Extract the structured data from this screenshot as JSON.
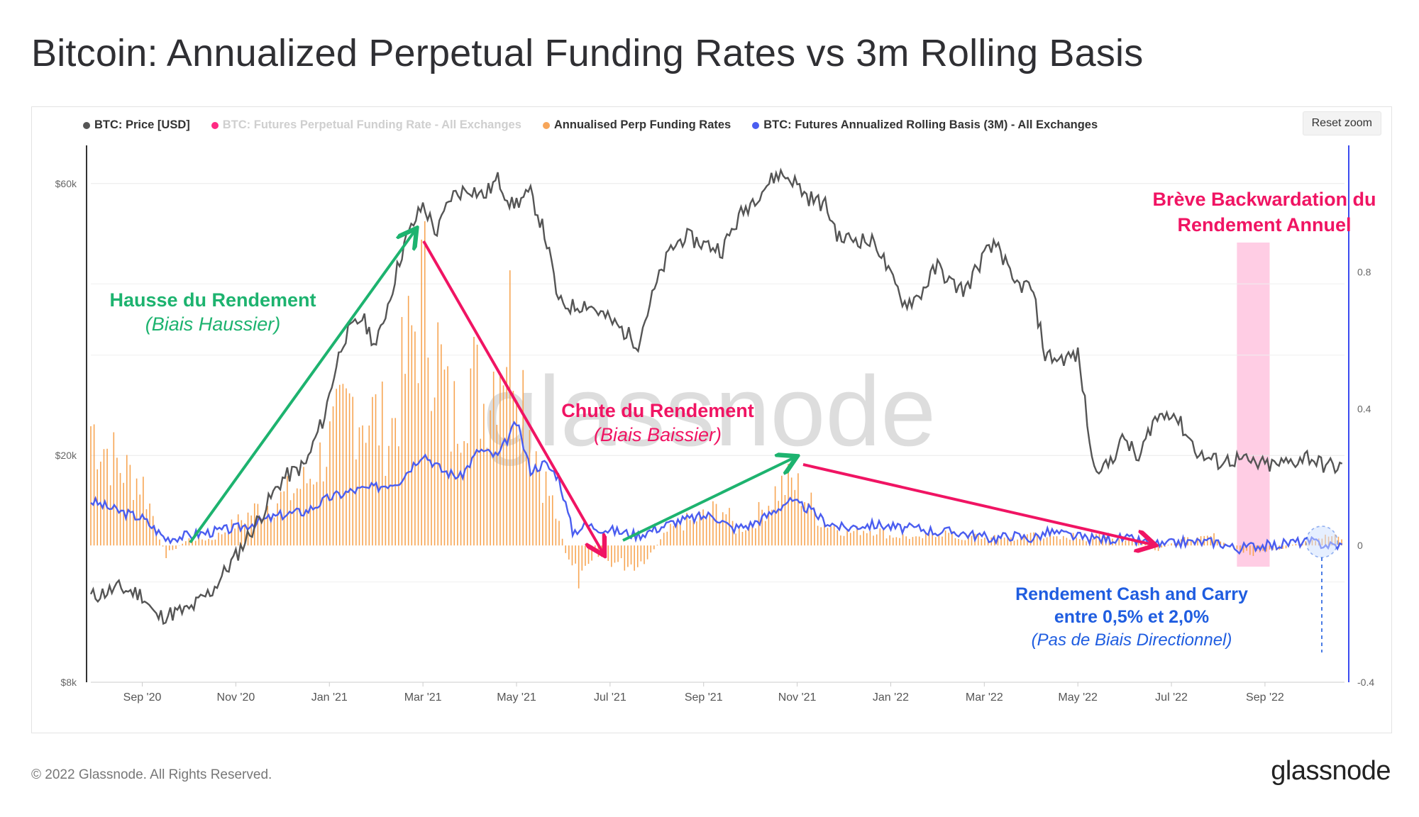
{
  "title": "Bitcoin: Annualized Perpetual Funding Rates vs 3m Rolling Basis",
  "reset_zoom_label": "Reset zoom",
  "footer": {
    "copyright": "© 2022 Glassnode. All Rights Reserved.",
    "logo": "glassnode"
  },
  "watermark": "glassnode",
  "colors": {
    "price": "#555555",
    "funding": "#f7931a",
    "basis": "#4a5df0",
    "muted_pink": "#ff2a83",
    "green": "#1db36f",
    "red": "#f01463",
    "blue": "#1f5de0",
    "band": "#ffc1dd"
  },
  "legend": [
    {
      "label": "BTC: Price [USD]",
      "color": "#555555",
      "muted": false
    },
    {
      "label": "BTC: Futures Perpetual Funding Rate - All Exchanges",
      "color": "#ff2a83",
      "muted": true
    },
    {
      "label": "Annualised Perp Funding Rates",
      "color": "#f7a65a",
      "muted": false
    },
    {
      "label": "BTC: Futures Annualized Rolling Basis (3M) - All Exchanges",
      "color": "#4a5df0",
      "muted": false
    }
  ],
  "annotations": {
    "hausse_title": "Hausse du Rendement",
    "hausse_sub": "(Biais Haussier)",
    "chute_title": "Chute du Rendement",
    "chute_sub": "(Biais Baissier)",
    "backwardation_line1": "Brève Backwardation du",
    "backwardation_line2": "Rendement Annuel",
    "cash_line1": "Rendement Cash and Carry",
    "cash_line2": "entre 0,5% et 2,0%",
    "cash_sub": "(Pas de Biais Directionnel)"
  },
  "chart_data": {
    "type": "line",
    "title": "Bitcoin: Annualized Perpetual Funding Rates vs 3m Rolling Basis",
    "x_ticks": [
      "Sep '20",
      "Nov '20",
      "Jan '21",
      "Mar '21",
      "May '21",
      "Jul '21",
      "Sep '21",
      "Nov '21",
      "Jan '22",
      "Mar '22",
      "May '22",
      "Jul '22",
      "Sep '22"
    ],
    "x_tick_months": [
      2,
      4,
      6,
      8,
      10,
      12,
      14,
      16,
      18,
      20,
      22,
      24,
      26
    ],
    "x_range_months": [
      0.9,
      27.7
    ],
    "y_left": {
      "scale": "log",
      "ticks": [
        8000,
        20000,
        60000
      ],
      "tick_labels": [
        "$8k",
        "$20k",
        "$60k"
      ],
      "range": [
        8000,
        70000
      ]
    },
    "y_right": {
      "ticks": [
        -0.4,
        0,
        0.4,
        0.8
      ],
      "tick_labels": [
        "-0.4",
        "0",
        "0.4",
        "0.8"
      ],
      "range": [
        -0.4,
        1.17
      ]
    },
    "series": [
      {
        "name": "BTC: Price [USD]",
        "axis": "left",
        "points": [
          [
            0.9,
            11300
          ],
          [
            1.5,
            11700
          ],
          [
            2.0,
            11400
          ],
          [
            2.3,
            10400
          ],
          [
            2.7,
            10600
          ],
          [
            3.0,
            10700
          ],
          [
            3.5,
            11600
          ],
          [
            4.0,
            13300
          ],
          [
            4.5,
            15500
          ],
          [
            5.0,
            18200
          ],
          [
            5.5,
            19300
          ],
          [
            5.9,
            23500
          ],
          [
            6.3,
            32000
          ],
          [
            6.7,
            35000
          ],
          [
            7.0,
            31000
          ],
          [
            7.3,
            38000
          ],
          [
            7.6,
            47000
          ],
          [
            8.0,
            55000
          ],
          [
            8.3,
            49000
          ],
          [
            8.6,
            57000
          ],
          [
            9.0,
            59000
          ],
          [
            9.3,
            57000
          ],
          [
            9.6,
            61000
          ],
          [
            9.9,
            55000
          ],
          [
            10.3,
            57500
          ],
          [
            10.6,
            49000
          ],
          [
            10.9,
            37000
          ],
          [
            11.2,
            36500
          ],
          [
            11.5,
            37000
          ],
          [
            11.8,
            35500
          ],
          [
            12.2,
            33500
          ],
          [
            12.6,
            31500
          ],
          [
            13.0,
            40000
          ],
          [
            13.3,
            46000
          ],
          [
            13.6,
            48500
          ],
          [
            14.0,
            47000
          ],
          [
            14.4,
            46000
          ],
          [
            14.8,
            53000
          ],
          [
            15.2,
            58000
          ],
          [
            15.6,
            62500
          ],
          [
            15.9,
            61000
          ],
          [
            16.2,
            57000
          ],
          [
            16.6,
            55000
          ],
          [
            16.9,
            48000
          ],
          [
            17.3,
            48000
          ],
          [
            17.7,
            47000
          ],
          [
            18.0,
            41000
          ],
          [
            18.3,
            37000
          ],
          [
            18.6,
            38000
          ],
          [
            19.0,
            43000
          ],
          [
            19.3,
            40000
          ],
          [
            19.6,
            39000
          ],
          [
            20.0,
            45000
          ],
          [
            20.3,
            47000
          ],
          [
            20.6,
            40000
          ],
          [
            21.0,
            39500
          ],
          [
            21.3,
            30000
          ],
          [
            21.6,
            29500
          ],
          [
            22.0,
            30000
          ],
          [
            22.3,
            19500
          ],
          [
            22.6,
            19000
          ],
          [
            23.0,
            21500
          ],
          [
            23.3,
            19500
          ],
          [
            23.6,
            23000
          ],
          [
            24.0,
            24000
          ],
          [
            24.3,
            22000
          ],
          [
            24.6,
            20000
          ],
          [
            25.0,
            19500
          ],
          [
            25.4,
            19700
          ],
          [
            25.8,
            19300
          ],
          [
            26.2,
            19200
          ],
          [
            26.6,
            19500
          ],
          [
            26.9,
            20000
          ],
          [
            27.2,
            19300
          ],
          [
            27.7,
            19000
          ]
        ]
      },
      {
        "name": "BTC: Futures Annualized Rolling Basis (3M) - All Exchanges",
        "axis": "right",
        "points": [
          [
            0.9,
            0.13
          ],
          [
            1.5,
            0.1
          ],
          [
            2.0,
            0.08
          ],
          [
            2.5,
            0.02
          ],
          [
            3.0,
            0.03
          ],
          [
            3.5,
            0.04
          ],
          [
            4.0,
            0.05
          ],
          [
            4.5,
            0.07
          ],
          [
            5.0,
            0.09
          ],
          [
            5.5,
            0.1
          ],
          [
            6.0,
            0.14
          ],
          [
            6.5,
            0.16
          ],
          [
            7.0,
            0.17
          ],
          [
            7.5,
            0.19
          ],
          [
            8.0,
            0.27
          ],
          [
            8.4,
            0.22
          ],
          [
            8.8,
            0.2
          ],
          [
            9.2,
            0.28
          ],
          [
            9.6,
            0.26
          ],
          [
            10.0,
            0.36
          ],
          [
            10.3,
            0.22
          ],
          [
            10.6,
            0.24
          ],
          [
            10.9,
            0.2
          ],
          [
            11.2,
            0.04
          ],
          [
            11.5,
            0.06
          ],
          [
            11.8,
            0.05
          ],
          [
            12.2,
            0.04
          ],
          [
            12.6,
            0.03
          ],
          [
            13.0,
            0.05
          ],
          [
            13.4,
            0.07
          ],
          [
            13.8,
            0.08
          ],
          [
            14.2,
            0.09
          ],
          [
            14.6,
            0.05
          ],
          [
            15.0,
            0.06
          ],
          [
            15.4,
            0.09
          ],
          [
            15.8,
            0.13
          ],
          [
            16.2,
            0.11
          ],
          [
            16.6,
            0.07
          ],
          [
            17.0,
            0.05
          ],
          [
            17.4,
            0.06
          ],
          [
            17.8,
            0.06
          ],
          [
            18.2,
            0.05
          ],
          [
            18.6,
            0.05
          ],
          [
            19.0,
            0.04
          ],
          [
            19.4,
            0.04
          ],
          [
            19.8,
            0.03
          ],
          [
            20.2,
            0.02
          ],
          [
            20.6,
            0.03
          ],
          [
            21.0,
            0.02
          ],
          [
            21.4,
            0.04
          ],
          [
            21.8,
            0.03
          ],
          [
            22.2,
            0.02
          ],
          [
            22.6,
            0.02
          ],
          [
            23.0,
            0.02
          ],
          [
            23.4,
            0.01
          ],
          [
            23.8,
            0.0
          ],
          [
            24.2,
            0.01
          ],
          [
            24.6,
            0.01
          ],
          [
            25.0,
            0.01
          ],
          [
            25.4,
            -0.01
          ],
          [
            25.8,
            0.0
          ],
          [
            26.2,
            0.0
          ],
          [
            26.6,
            0.01
          ],
          [
            27.0,
            0.01
          ],
          [
            27.4,
            0.0
          ],
          [
            27.7,
            0.0
          ]
        ]
      },
      {
        "name": "Annualised Perp Funding Rates",
        "axis": "right",
        "type": "bar",
        "points": [
          [
            0.9,
            0.38
          ],
          [
            1.5,
            0.25
          ],
          [
            2.0,
            0.2
          ],
          [
            2.5,
            -0.03
          ],
          [
            3.0,
            0.02
          ],
          [
            3.5,
            0.02
          ],
          [
            4.0,
            0.07
          ],
          [
            4.5,
            0.12
          ],
          [
            5.0,
            0.15
          ],
          [
            5.5,
            0.2
          ],
          [
            6.0,
            0.32
          ],
          [
            6.5,
            0.45
          ],
          [
            7.0,
            0.4
          ],
          [
            7.3,
            0.35
          ],
          [
            7.6,
            0.55
          ],
          [
            8.0,
            0.8
          ],
          [
            8.3,
            0.62
          ],
          [
            8.6,
            0.38
          ],
          [
            9.0,
            0.55
          ],
          [
            9.3,
            0.45
          ],
          [
            9.6,
            0.6
          ],
          [
            9.9,
            0.72
          ],
          [
            10.2,
            0.45
          ],
          [
            10.5,
            0.25
          ],
          [
            10.8,
            0.12
          ],
          [
            11.1,
            -0.05
          ],
          [
            11.4,
            -0.12
          ],
          [
            11.7,
            -0.03
          ],
          [
            12.0,
            -0.05
          ],
          [
            12.3,
            -0.06
          ],
          [
            12.6,
            -0.06
          ],
          [
            12.9,
            -0.02
          ],
          [
            13.2,
            0.04
          ],
          [
            13.5,
            0.07
          ],
          [
            13.8,
            0.08
          ],
          [
            14.1,
            0.1
          ],
          [
            14.4,
            0.12
          ],
          [
            14.7,
            0.05
          ],
          [
            15.0,
            0.07
          ],
          [
            15.3,
            0.12
          ],
          [
            15.6,
            0.18
          ],
          [
            15.9,
            0.2
          ],
          [
            16.2,
            0.15
          ],
          [
            16.5,
            0.08
          ],
          [
            16.8,
            0.06
          ],
          [
            17.1,
            0.04
          ],
          [
            17.4,
            0.05
          ],
          [
            17.7,
            0.05
          ],
          [
            18.0,
            0.03
          ],
          [
            18.3,
            0.03
          ],
          [
            18.6,
            0.02
          ],
          [
            18.9,
            0.04
          ],
          [
            19.2,
            0.04
          ],
          [
            19.5,
            0.02
          ],
          [
            19.8,
            0.03
          ],
          [
            20.1,
            0.02
          ],
          [
            20.4,
            0.03
          ],
          [
            20.7,
            0.02
          ],
          [
            21.0,
            0.04
          ],
          [
            21.3,
            0.03
          ],
          [
            21.6,
            0.02
          ],
          [
            21.9,
            0.03
          ],
          [
            22.2,
            0.02
          ],
          [
            22.5,
            0.03
          ],
          [
            22.8,
            0.02
          ],
          [
            23.1,
            0.02
          ],
          [
            23.4,
            0.01
          ],
          [
            23.7,
            -0.02
          ],
          [
            24.0,
            0.01
          ],
          [
            24.3,
            0.02
          ],
          [
            24.6,
            0.02
          ],
          [
            24.9,
            0.03
          ],
          [
            25.2,
            0.0
          ],
          [
            25.5,
            -0.02
          ],
          [
            25.8,
            -0.03
          ],
          [
            26.1,
            -0.02
          ],
          [
            26.4,
            -0.01
          ],
          [
            26.7,
            0.01
          ],
          [
            27.0,
            0.02
          ],
          [
            27.4,
            0.03
          ],
          [
            27.7,
            0.02
          ]
        ]
      }
    ],
    "highlight_band_months": [
      25.4,
      26.1
    ]
  }
}
